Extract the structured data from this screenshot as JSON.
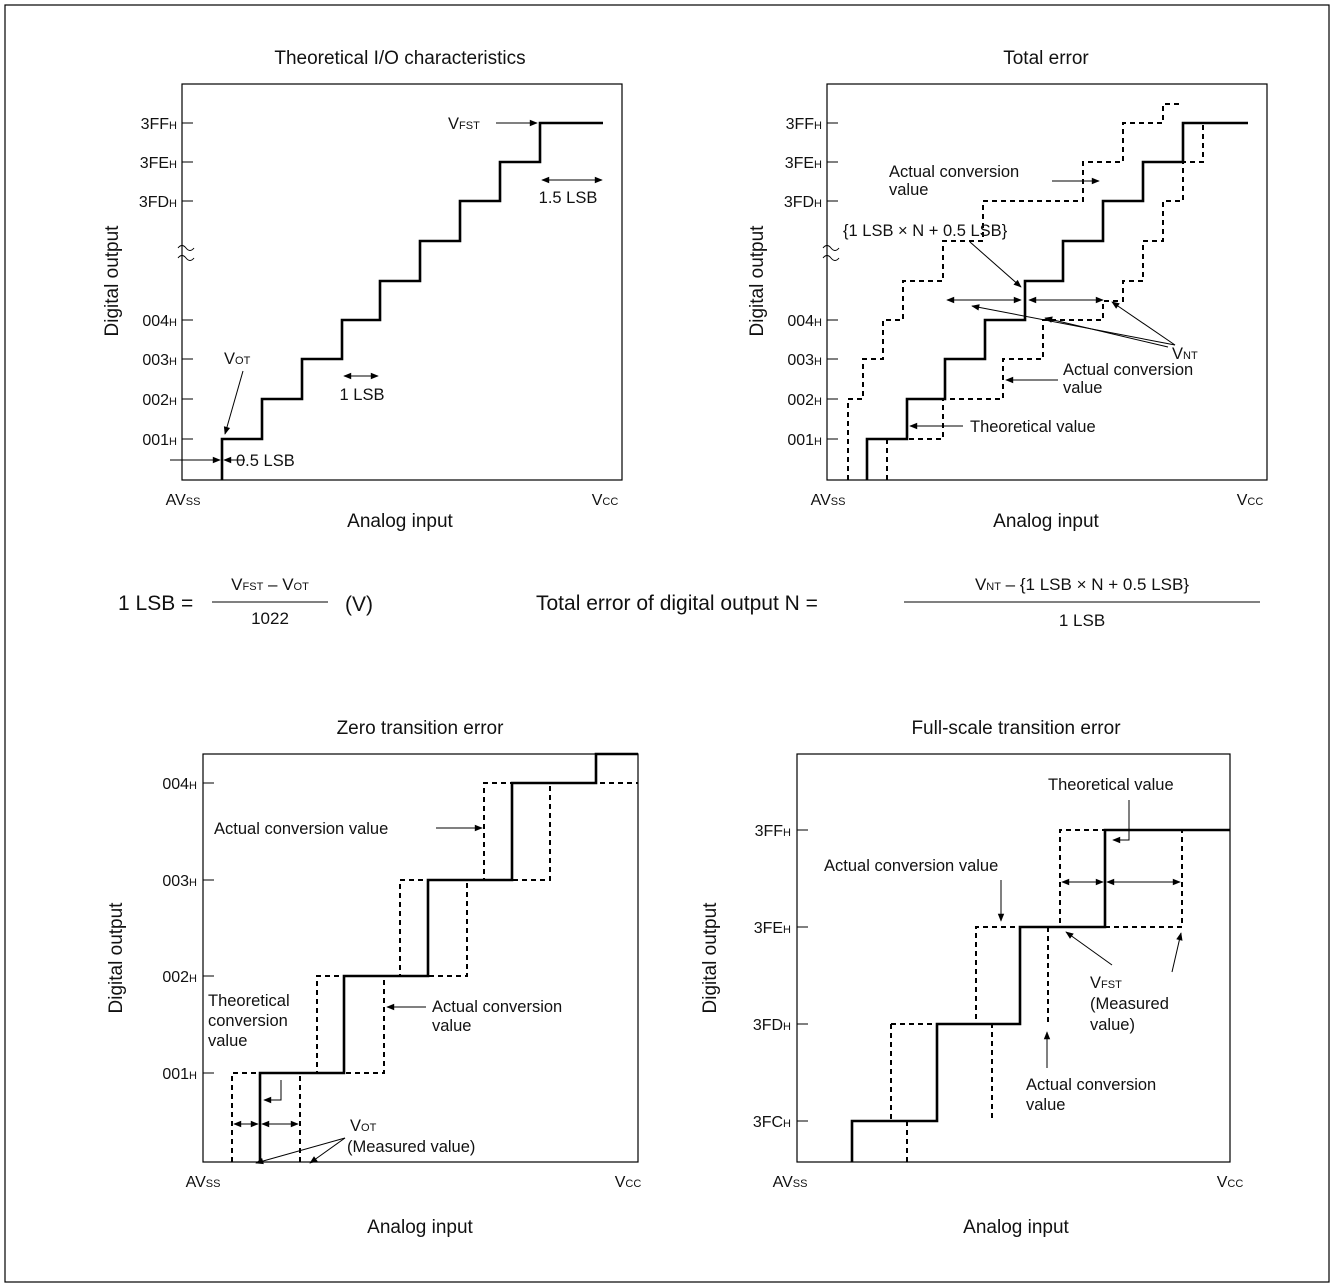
{
  "panels": {
    "theoretical": {
      "title": "Theoretical  I/O characteristics"
    },
    "total": {
      "title": "Total error"
    },
    "zero": {
      "title": "Zero transition error"
    },
    "fullscale": {
      "title": "Full-scale transition error"
    }
  },
  "axis": {
    "digital_output": "Digital output",
    "analog_input": "Analog input",
    "avss_main": "AV",
    "avss_sub": "SS",
    "vcc_main": "V",
    "vcc_sub": "CC"
  },
  "ticks": {
    "3ff": {
      "main": "3FF",
      "sub": "H"
    },
    "3fe": {
      "main": "3FE",
      "sub": "H"
    },
    "3fd": {
      "main": "3FD",
      "sub": "H"
    },
    "3fc": {
      "main": "3FC",
      "sub": "H"
    },
    "004": {
      "main": "004",
      "sub": "H"
    },
    "003": {
      "main": "003",
      "sub": "H"
    },
    "002": {
      "main": "002",
      "sub": "H"
    },
    "001": {
      "main": "001",
      "sub": "H"
    }
  },
  "labels": {
    "v_main": "V",
    "ot_sub": "OT",
    "fst_sub": "FST",
    "nt_sub": "NT",
    "half_lsb": "0.5 LSB",
    "one_lsb": "1 LSB",
    "one_half_lsb": "1.5 LSB",
    "actual_l1": "Actual conversion",
    "actual_l2": "value",
    "actual_full": "Actual conversion value",
    "lsb_n_formula": "{1 LSB × N + 0.5 LSB}",
    "theoretical_value": "Theoretical value",
    "theo_conv_l1": "Theoretical",
    "theo_conv_l2": "conversion",
    "theo_conv_l3": "value",
    "measured_value": "(Measured value)",
    "measured_l1": "(Measured",
    "measured_l2": "value)"
  },
  "formulas": {
    "minus": " – ",
    "lsb": {
      "lhs": "1 LSB =",
      "den": "1022",
      "unit": "(V)"
    },
    "total": {
      "lhs": "Total error of digital output N =",
      "num_rest": " – {1 LSB × N + 0.5 LSB}",
      "den": "1 LSB"
    }
  }
}
